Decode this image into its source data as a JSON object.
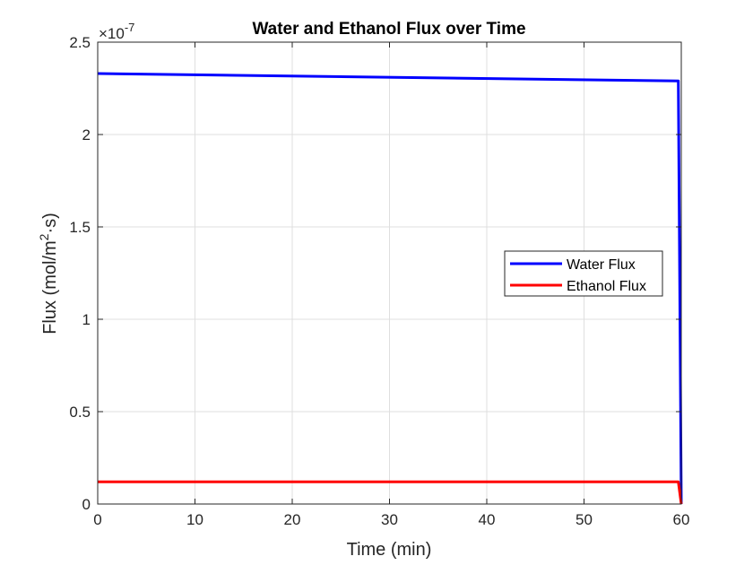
{
  "chart_data": {
    "type": "line",
    "title": "Water and Ethanol Flux over Time",
    "xlabel": "Time (min)",
    "ylabel_parts": {
      "pre": "Flux (mol/m",
      "sup": "2",
      "post": "·s)"
    },
    "y_exponent": {
      "base": "×10",
      "power": "-7"
    },
    "xlim": [
      0,
      60
    ],
    "ylim": [
      0,
      2.5e-07
    ],
    "x_ticks": [
      0,
      10,
      20,
      30,
      40,
      50,
      60
    ],
    "x_tick_labels": [
      "0",
      "10",
      "20",
      "30",
      "40",
      "50",
      "60"
    ],
    "y_ticks": [
      0,
      5e-08,
      1e-07,
      1.5e-07,
      2e-07,
      2.5e-07
    ],
    "y_tick_labels": [
      "0",
      "0.5",
      "1",
      "1.5",
      "2",
      "2.5"
    ],
    "grid": true,
    "legend_position": "right-center",
    "series": [
      {
        "name": "Water Flux",
        "color": "#0000ff",
        "x": [
          0,
          59.7,
          60
        ],
        "y": [
          2.33e-07,
          2.29e-07,
          0
        ]
      },
      {
        "name": "Ethanol Flux",
        "color": "#ff0000",
        "x": [
          0,
          59.7,
          60
        ],
        "y": [
          1.2e-08,
          1.2e-08,
          0
        ]
      }
    ]
  }
}
